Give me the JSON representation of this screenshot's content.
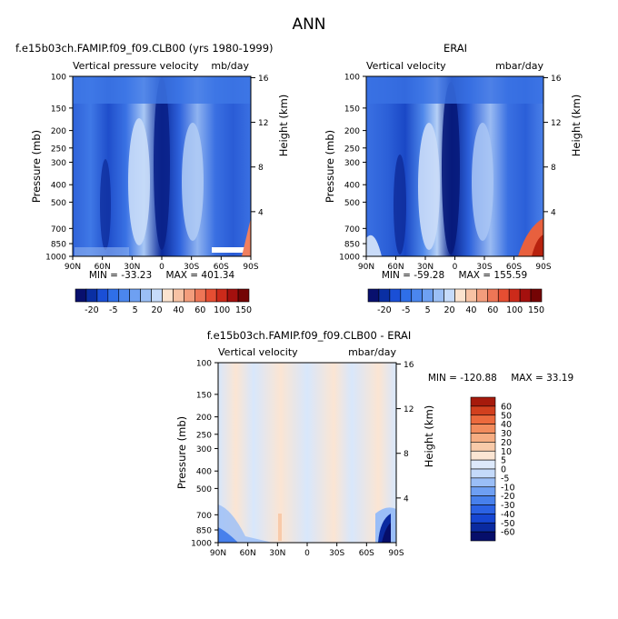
{
  "figure": {
    "title": "ANN",
    "colors": {
      "full_palette": [
        "#08106e",
        "#0a2fa3",
        "#1a4fd6",
        "#2f6fe8",
        "#4b86ee",
        "#6ea0f2",
        "#9bbff6",
        "#c6dbfa",
        "#fbe3cf",
        "#f7c2a4",
        "#f39d7c",
        "#ee7656",
        "#e64e32",
        "#cc2a1a",
        "#a4100e",
        "#740404"
      ],
      "diff_palette": [
        "#060e6a",
        "#0a2aa0",
        "#1646d2",
        "#2b62e4",
        "#4780ec",
        "#6e9ff3",
        "#9abef7",
        "#c4dafa",
        "#dde9fb",
        "#fbe5d3",
        "#f8caa9",
        "#f6ad82",
        "#f28c5d",
        "#ec6a3d",
        "#d2401e",
        "#a61a0c"
      ]
    }
  },
  "chart_data": [
    {
      "type": "heatmap",
      "title": "f.e15b03ch.FAMIP.f09_f09.CLB00 (yrs 1980-1999)",
      "subtitle_left": "Vertical pressure velocity",
      "subtitle_right": "mb/day",
      "ylabel": "Pressure (mb)",
      "ylabel_right": "Height (km)",
      "x_ticks": [
        "90N",
        "60N",
        "30N",
        "0",
        "30S",
        "60S",
        "90S"
      ],
      "x_values": [
        90,
        60,
        30,
        0,
        -30,
        -60,
        -90
      ],
      "xlim": [
        90,
        -90
      ],
      "y_ticks": [
        100,
        150,
        200,
        250,
        300,
        400,
        500,
        700,
        850,
        1000
      ],
      "ylim": [
        100,
        1000
      ],
      "y_scale": "log",
      "height_ticks": [
        4,
        8,
        12,
        16
      ],
      "min_label": "MIN = -33.23",
      "max_label": "MAX = 401.34",
      "min": -33.23,
      "max": 401.34
    },
    {
      "type": "heatmap",
      "title": "ERAI",
      "subtitle_left": "Vertical velocity",
      "subtitle_right": "mbar/day",
      "ylabel": "Pressure (mb)",
      "ylabel_right": "Height (km)",
      "x_ticks": [
        "90N",
        "60N",
        "30N",
        "0",
        "30S",
        "60S",
        "90S"
      ],
      "x_values": [
        90,
        60,
        30,
        0,
        -30,
        -60,
        -90
      ],
      "xlim": [
        90,
        -90
      ],
      "y_ticks": [
        100,
        150,
        200,
        250,
        300,
        400,
        500,
        700,
        850,
        1000
      ],
      "ylim": [
        100,
        1000
      ],
      "y_scale": "log",
      "height_ticks": [
        4,
        8,
        12,
        16
      ],
      "min_label": "MIN = -59.28",
      "max_label": "MAX = 155.59",
      "min": -59.28,
      "max": 155.59
    },
    {
      "type": "heatmap",
      "title": "f.e15b03ch.FAMIP.f09_f09.CLB00 - ERAI",
      "subtitle_left": "Vertical velocity",
      "subtitle_right": "mbar/day",
      "ylabel": "Pressure (mb)",
      "ylabel_right": "Height (km)",
      "x_ticks": [
        "90N",
        "60N",
        "30N",
        "0",
        "30S",
        "60S",
        "90S"
      ],
      "x_values": [
        90,
        60,
        30,
        0,
        -30,
        -60,
        -90
      ],
      "xlim": [
        90,
        -90
      ],
      "y_ticks": [
        100,
        150,
        200,
        250,
        300,
        400,
        500,
        700,
        850,
        1000
      ],
      "ylim": [
        100,
        1000
      ],
      "y_scale": "log",
      "height_ticks": [
        4,
        8,
        12,
        16
      ],
      "min_label": "MIN = -120.88",
      "max_label": "MAX =  33.19",
      "min": -120.88,
      "max": 33.19
    }
  ],
  "colorbars": {
    "full": {
      "orientation": "horizontal",
      "labels": [
        "-20",
        "-5",
        "5",
        "20",
        "40",
        "60",
        "100",
        "150"
      ],
      "levels": [
        -20,
        -15,
        -10,
        -5,
        0,
        5,
        10,
        20,
        30,
        40,
        50,
        60,
        80,
        100,
        120,
        150
      ]
    },
    "diff": {
      "orientation": "vertical",
      "labels": [
        "60",
        "50",
        "40",
        "30",
        "20",
        "10",
        "5",
        "0",
        "-5",
        "-10",
        "-20",
        "-30",
        "-40",
        "-50",
        "-60"
      ],
      "levels": [
        60,
        50,
        40,
        30,
        20,
        10,
        5,
        0,
        -5,
        -10,
        -20,
        -30,
        -40,
        -50,
        -60
      ]
    }
  }
}
